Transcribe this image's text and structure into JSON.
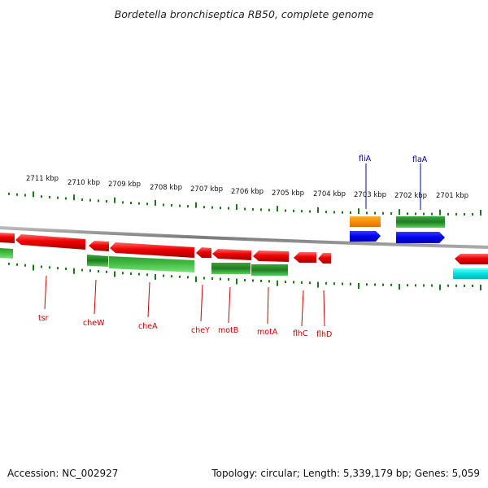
{
  "title": "Bordetella bronchiseptica RB50, complete genome",
  "footer": {
    "accession": "Accession: NC_002927",
    "summary": "Topology: circular; Length: 5,339,179 bp; Genes: 5,059"
  },
  "colors": {
    "forward_gene": "#ee0000",
    "reverse_gene": "#1e8a1e",
    "tick": "#1a7a1a",
    "backbone": "#8a8a8a",
    "label_red": "#cc0000",
    "label_blue": "#0000aa",
    "blue_gene": "#0000ee",
    "orange_gene": "#ff8c00",
    "cyan_gene": "#00dddd"
  },
  "kbp_labels": [
    "2711 kbp",
    "2710 kbp",
    "2709 kbp",
    "2708 kbp",
    "2707 kbp",
    "2706 kbp",
    "2705 kbp",
    "2704 kbp",
    "2703 kbp",
    "2702 kbp",
    "2701 kbp"
  ],
  "gene_labels_below": [
    "tsr",
    "cheW",
    "cheA",
    "cheY",
    "motB",
    "motA",
    "flhC",
    "flhD"
  ],
  "gene_labels_above": [
    "fliA",
    "flaA"
  ]
}
